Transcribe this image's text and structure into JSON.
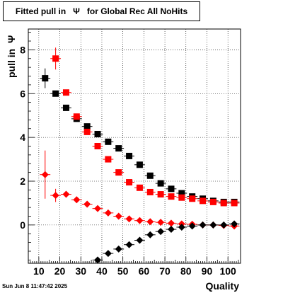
{
  "chart_data": {
    "type": "scatter",
    "title": "Fitted pull in   Ψ   for Global Rec All NoHits",
    "xlabel": "Quality",
    "ylabel": "pull in  Ψ",
    "xlim": [
      5,
      106
    ],
    "ylim": [
      -1.75,
      8.95
    ],
    "x_ticks": [
      10,
      20,
      30,
      40,
      50,
      60,
      70,
      80,
      90,
      100
    ],
    "y_ticks": [
      0,
      2,
      4,
      6,
      8
    ],
    "grid": true,
    "series": [
      {
        "marker": "square",
        "color": "#000000",
        "points": [
          {
            "x": 13,
            "y": 6.7,
            "err": 0.45
          },
          {
            "x": 18,
            "y": 6.0,
            "err": 0.1
          },
          {
            "x": 23,
            "y": 5.35,
            "err": 0.1
          },
          {
            "x": 28,
            "y": 4.85,
            "err": 0.1
          },
          {
            "x": 33,
            "y": 4.5,
            "err": 0.1
          },
          {
            "x": 38,
            "y": 4.15,
            "err": 0.1
          },
          {
            "x": 43,
            "y": 3.8,
            "err": 0.08
          },
          {
            "x": 48,
            "y": 3.5,
            "err": 0.08
          },
          {
            "x": 53,
            "y": 3.15,
            "err": 0.08
          },
          {
            "x": 58,
            "y": 2.75,
            "err": 0.08
          },
          {
            "x": 63,
            "y": 2.25,
            "err": 0.08
          },
          {
            "x": 68,
            "y": 1.9,
            "err": 0.06
          },
          {
            "x": 73,
            "y": 1.65,
            "err": 0.06
          },
          {
            "x": 78,
            "y": 1.45,
            "err": 0.06
          },
          {
            "x": 83,
            "y": 1.3,
            "err": 0.05
          },
          {
            "x": 88,
            "y": 1.2,
            "err": 0.05
          },
          {
            "x": 93,
            "y": 1.1,
            "err": 0.05
          },
          {
            "x": 98,
            "y": 1.05,
            "err": 0.05
          },
          {
            "x": 103,
            "y": 1.05,
            "err": 0.05
          }
        ]
      },
      {
        "marker": "square",
        "color": "#ff0000",
        "points": [
          {
            "x": 18,
            "y": 7.6,
            "err": 0.5
          },
          {
            "x": 23,
            "y": 6.05,
            "err": 0.1
          },
          {
            "x": 28,
            "y": 4.95,
            "err": 0.1
          },
          {
            "x": 33,
            "y": 4.25,
            "err": 0.1
          },
          {
            "x": 38,
            "y": 3.6,
            "err": 0.08
          },
          {
            "x": 43,
            "y": 3.0,
            "err": 0.08
          },
          {
            "x": 48,
            "y": 2.4,
            "err": 0.08
          },
          {
            "x": 53,
            "y": 1.95,
            "err": 0.06
          },
          {
            "x": 58,
            "y": 1.7,
            "err": 0.06
          },
          {
            "x": 63,
            "y": 1.5,
            "err": 0.06
          },
          {
            "x": 68,
            "y": 1.4,
            "err": 0.06
          },
          {
            "x": 73,
            "y": 1.3,
            "err": 0.05
          },
          {
            "x": 78,
            "y": 1.25,
            "err": 0.05
          },
          {
            "x": 83,
            "y": 1.2,
            "err": 0.05
          },
          {
            "x": 88,
            "y": 1.1,
            "err": 0.05
          },
          {
            "x": 93,
            "y": 1.05,
            "err": 0.05
          },
          {
            "x": 98,
            "y": 1.0,
            "err": 0.05
          },
          {
            "x": 103,
            "y": 1.0,
            "err": 0.05
          }
        ]
      },
      {
        "marker": "diamond",
        "color": "#ff0000",
        "points": [
          {
            "x": 13,
            "y": 2.3,
            "err": 1.1
          },
          {
            "x": 18,
            "y": 1.35,
            "err": 0.3
          },
          {
            "x": 23,
            "y": 1.4,
            "err": 0.08
          },
          {
            "x": 28,
            "y": 1.15,
            "err": 0.06
          },
          {
            "x": 33,
            "y": 0.95,
            "err": 0.05
          },
          {
            "x": 38,
            "y": 0.75,
            "err": 0.05
          },
          {
            "x": 43,
            "y": 0.55,
            "err": 0.05
          },
          {
            "x": 48,
            "y": 0.4,
            "err": 0.04
          },
          {
            "x": 53,
            "y": 0.28,
            "err": 0.04
          },
          {
            "x": 58,
            "y": 0.2,
            "err": 0.04
          },
          {
            "x": 63,
            "y": 0.15,
            "err": 0.03
          },
          {
            "x": 68,
            "y": 0.12,
            "err": 0.03
          },
          {
            "x": 73,
            "y": 0.08,
            "err": 0.03
          },
          {
            "x": 78,
            "y": 0.05,
            "err": 0.03
          },
          {
            "x": 83,
            "y": 0.03,
            "err": 0.03
          },
          {
            "x": 88,
            "y": 0.0,
            "err": 0.03
          },
          {
            "x": 93,
            "y": 0.0,
            "err": 0.03
          },
          {
            "x": 98,
            "y": -0.02,
            "err": 0.03
          },
          {
            "x": 103,
            "y": -0.05,
            "err": 0.03
          }
        ]
      },
      {
        "marker": "diamond",
        "color": "#000000",
        "points": [
          {
            "x": 38,
            "y": -1.6,
            "err": 0.05
          },
          {
            "x": 43,
            "y": -1.3,
            "err": 0.05
          },
          {
            "x": 48,
            "y": -1.1,
            "err": 0.05
          },
          {
            "x": 53,
            "y": -0.9,
            "err": 0.04
          },
          {
            "x": 58,
            "y": -0.7,
            "err": 0.04
          },
          {
            "x": 63,
            "y": -0.45,
            "err": 0.04
          },
          {
            "x": 68,
            "y": -0.3,
            "err": 0.03
          },
          {
            "x": 73,
            "y": -0.2,
            "err": 0.03
          },
          {
            "x": 78,
            "y": -0.1,
            "err": 0.03
          },
          {
            "x": 83,
            "y": -0.05,
            "err": 0.03
          },
          {
            "x": 88,
            "y": 0.0,
            "err": 0.03
          },
          {
            "x": 93,
            "y": 0.0,
            "err": 0.03
          },
          {
            "x": 98,
            "y": 0.0,
            "err": 0.03
          },
          {
            "x": 103,
            "y": 0.05,
            "err": 0.03
          }
        ]
      }
    ]
  },
  "timestamp": "Sun Jun  8 11:47:42 2025"
}
